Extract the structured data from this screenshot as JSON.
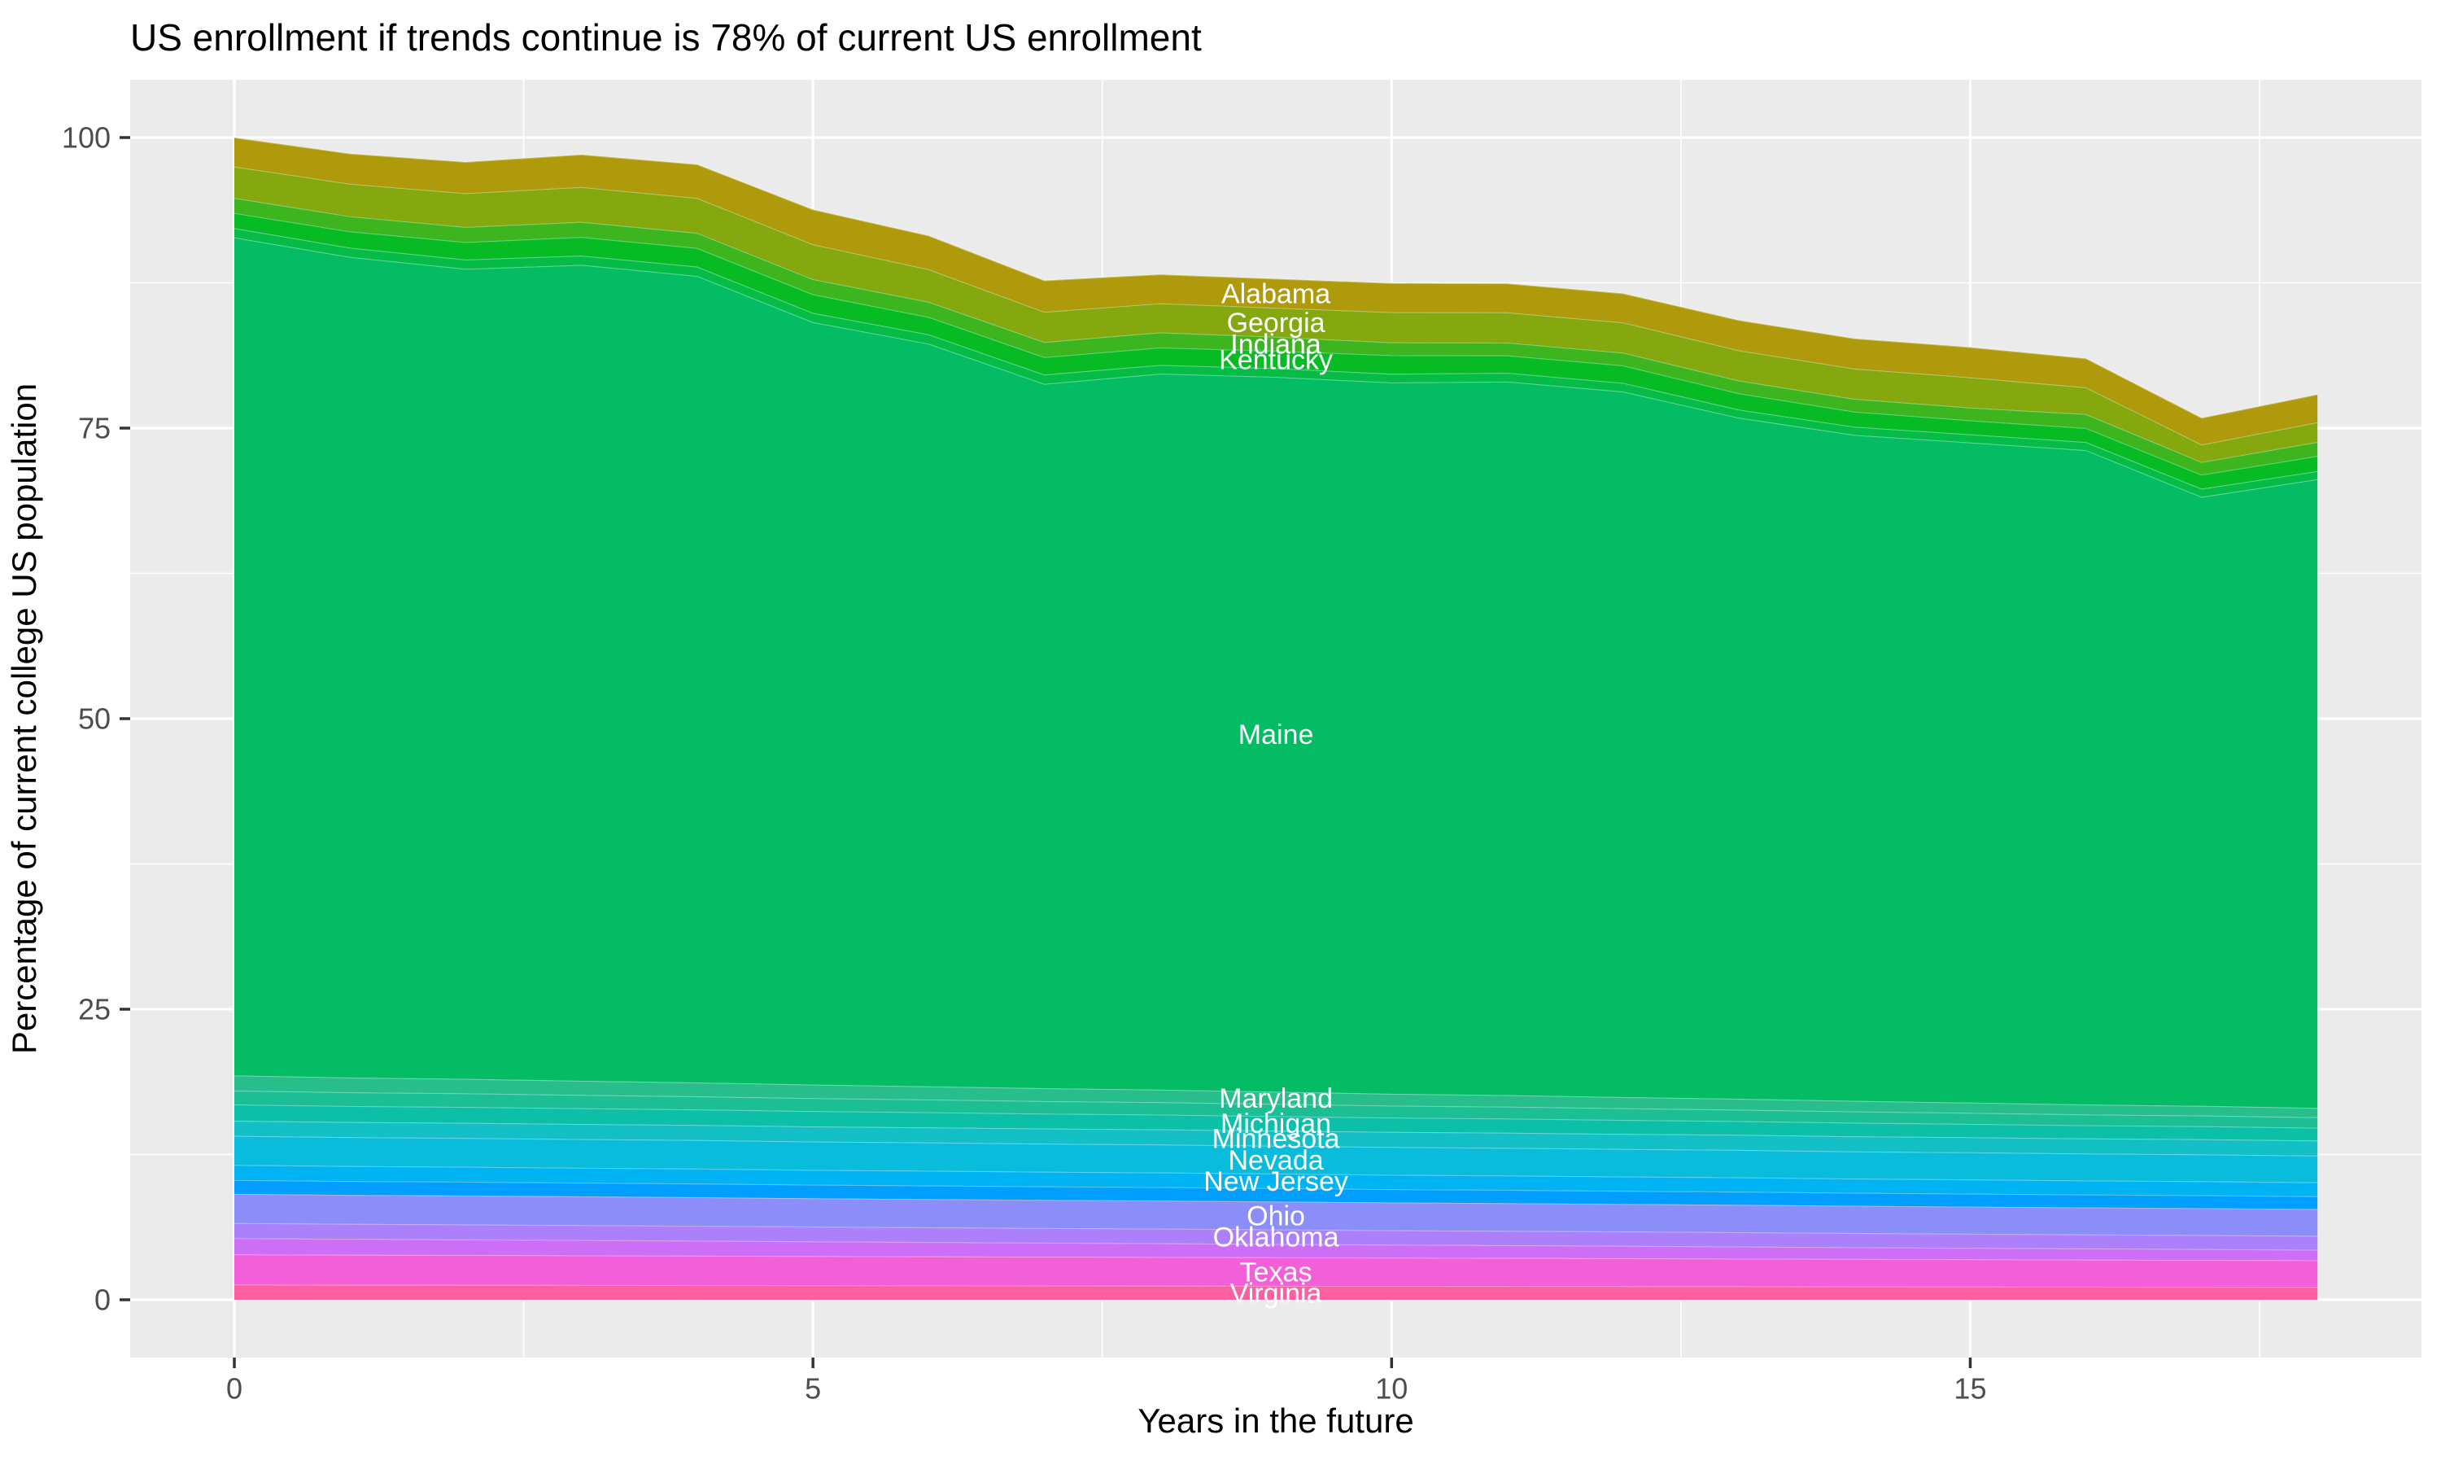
{
  "title": "US enrollment if trends continue is 78% of current US enrollment",
  "x_axis": {
    "label": "Years in the future",
    "ticks": [
      0,
      5,
      10,
      15
    ],
    "minor_ticks": [
      2.5,
      7.5,
      12.5,
      17.5
    ],
    "range": [
      0,
      18
    ]
  },
  "y_axis": {
    "label": "Percentage of current college US population",
    "ticks": [
      0,
      25,
      50,
      75,
      100
    ],
    "minor_ticks": [
      12.5,
      37.5,
      62.5,
      87.5
    ],
    "range": [
      0,
      100
    ]
  },
  "colors": {
    "panel_bg": "#EBEBEB",
    "gridline": "#FFFFFF",
    "tick_mark": "#333333",
    "tick_text": "#4D4D4D",
    "axis_text": "#000000",
    "band_label_text": "#FFFFFF",
    "band_edge_highlight": "rgba(255,255,255,0.35)"
  },
  "chart_data": {
    "type": "area",
    "stacked": true,
    "title": "US enrollment if trends continue is 78% of current US enrollment",
    "xlabel": "Years in the future",
    "ylabel": "Percentage of current college US population",
    "xlim": [
      0,
      18
    ],
    "ylim": [
      0,
      100
    ],
    "grid": "on",
    "legend_position": "none",
    "label_x": 9,
    "x": [
      0,
      1,
      2,
      3,
      4,
      5,
      6,
      7,
      8,
      9,
      10,
      11,
      12,
      13,
      14,
      15,
      16,
      17,
      18
    ],
    "final_total_percent": 78,
    "series": [
      {
        "name": "virginia",
        "label": "Virginia",
        "color": "#FD5FA2",
        "values": [
          1.3,
          1.29,
          1.28,
          1.27,
          1.26,
          1.24,
          1.23,
          1.22,
          1.21,
          1.2,
          1.19,
          1.18,
          1.17,
          1.16,
          1.14,
          1.13,
          1.12,
          1.11,
          1.1
        ]
      },
      {
        "name": "texas",
        "label": "Texas",
        "color": "#F25FD9",
        "values": [
          2.6,
          2.58,
          2.57,
          2.55,
          2.53,
          2.52,
          2.5,
          2.48,
          2.47,
          2.45,
          2.43,
          2.42,
          2.4,
          2.38,
          2.37,
          2.35,
          2.33,
          2.32,
          2.3
        ]
      },
      {
        "name": "unlabeled-1",
        "label": "",
        "color": "#CD6FF6",
        "values": [
          1.4,
          1.37,
          1.34,
          1.32,
          1.29,
          1.26,
          1.23,
          1.21,
          1.18,
          1.15,
          1.12,
          1.09,
          1.07,
          1.04,
          1.01,
          0.98,
          0.96,
          0.93,
          0.9
        ]
      },
      {
        "name": "oklahoma",
        "label": "Oklahoma",
        "color": "#AC80FA",
        "values": [
          1.3,
          1.29,
          1.29,
          1.28,
          1.28,
          1.27,
          1.27,
          1.26,
          1.26,
          1.25,
          1.24,
          1.24,
          1.23,
          1.23,
          1.22,
          1.22,
          1.21,
          1.21,
          1.2
        ]
      },
      {
        "name": "ohio",
        "label": "Ohio",
        "color": "#8B8DF8",
        "values": [
          2.5,
          2.49,
          2.48,
          2.47,
          2.46,
          2.44,
          2.43,
          2.42,
          2.41,
          2.4,
          2.39,
          2.38,
          2.37,
          2.36,
          2.34,
          2.33,
          2.32,
          2.31,
          2.3
        ]
      },
      {
        "name": "unlabeled-2",
        "label": "",
        "color": "#009FFF",
        "values": [
          1.2,
          1.19,
          1.19,
          1.18,
          1.18,
          1.17,
          1.17,
          1.16,
          1.16,
          1.15,
          1.14,
          1.14,
          1.13,
          1.13,
          1.12,
          1.12,
          1.11,
          1.11,
          1.1
        ]
      },
      {
        "name": "new-jersey",
        "label": "New Jersey",
        "color": "#00B3F2",
        "values": [
          1.3,
          1.29,
          1.29,
          1.28,
          1.28,
          1.27,
          1.27,
          1.26,
          1.26,
          1.25,
          1.24,
          1.24,
          1.23,
          1.23,
          1.22,
          1.22,
          1.21,
          1.21,
          1.2
        ]
      },
      {
        "name": "nevada",
        "label": "Nevada",
        "color": "#0ABCDC",
        "values": [
          2.5,
          2.49,
          2.48,
          2.47,
          2.46,
          2.44,
          2.43,
          2.42,
          2.41,
          2.4,
          2.39,
          2.38,
          2.37,
          2.36,
          2.34,
          2.33,
          2.32,
          2.31,
          2.3
        ]
      },
      {
        "name": "minnesota",
        "label": "Minnesota",
        "color": "#12BFC4",
        "values": [
          1.3,
          1.3,
          1.3,
          1.3,
          1.3,
          1.3,
          1.3,
          1.3,
          1.3,
          1.3,
          1.3,
          1.3,
          1.3,
          1.3,
          1.3,
          1.3,
          1.3,
          1.3,
          1.3
        ]
      },
      {
        "name": "michigan",
        "label": "Michigan",
        "color": "#0CBFA7",
        "values": [
          1.4,
          1.38,
          1.37,
          1.35,
          1.33,
          1.32,
          1.3,
          1.28,
          1.27,
          1.25,
          1.23,
          1.22,
          1.2,
          1.18,
          1.17,
          1.15,
          1.13,
          1.12,
          1.1
        ]
      },
      {
        "name": "unlabeled-3",
        "label": "",
        "color": "#1CBE93",
        "values": [
          1.2,
          1.18,
          1.17,
          1.15,
          1.13,
          1.12,
          1.1,
          1.08,
          1.07,
          1.05,
          1.03,
          1.02,
          1.0,
          0.98,
          0.97,
          0.95,
          0.93,
          0.92,
          0.9
        ]
      },
      {
        "name": "maryland",
        "label": "Maryland",
        "color": "#27BE8B",
        "values": [
          1.3,
          1.27,
          1.24,
          1.22,
          1.19,
          1.16,
          1.13,
          1.11,
          1.08,
          1.05,
          1.02,
          0.99,
          0.97,
          0.94,
          0.91,
          0.88,
          0.86,
          0.83,
          0.8
        ]
      },
      {
        "name": "maine",
        "label": "Maine",
        "color": "#04BC64",
        "values": [
          72.1,
          70.6,
          69.7,
          70.2,
          69.4,
          65.6,
          63.9,
          60.6,
          61.6,
          61.5,
          61.2,
          61.4,
          60.7,
          58.6,
          57.3,
          56.8,
          56.3,
          52.4,
          54.1
        ]
      },
      {
        "name": "unlabeled-4",
        "label": "",
        "color": "#04BC46",
        "values": [
          0.8,
          0.8,
          0.8,
          0.8,
          0.8,
          0.8,
          0.8,
          0.8,
          0.75,
          0.75,
          0.75,
          0.75,
          0.75,
          0.7,
          0.7,
          0.7,
          0.7,
          0.7,
          0.7
        ]
      },
      {
        "name": "kentucky",
        "label": "Kentucky",
        "color": "#06BB24",
        "values": [
          1.3,
          1.4,
          1.5,
          1.6,
          1.6,
          1.6,
          1.5,
          1.5,
          1.5,
          1.5,
          1.6,
          1.5,
          1.5,
          1.4,
          1.3,
          1.2,
          1.2,
          1.2,
          1.3
        ]
      },
      {
        "name": "indiana",
        "label": "Indiana",
        "color": "#3CB51F",
        "values": [
          1.3,
          1.3,
          1.3,
          1.3,
          1.3,
          1.3,
          1.3,
          1.3,
          1.3,
          1.2,
          1.1,
          1.1,
          1.1,
          1.1,
          1.1,
          1.1,
          1.2,
          1.1,
          1.2
        ]
      },
      {
        "name": "georgia",
        "label": "Georgia",
        "color": "#84A80D",
        "values": [
          2.7,
          2.8,
          2.9,
          3.0,
          3.0,
          3.0,
          2.8,
          2.6,
          2.5,
          2.5,
          2.6,
          2.6,
          2.6,
          2.6,
          2.6,
          2.6,
          2.3,
          1.5,
          1.7
        ]
      },
      {
        "name": "alabama",
        "label": "Alabama",
        "color": "#AE9A0B",
        "values": [
          2.5,
          2.6,
          2.7,
          2.8,
          2.9,
          3.0,
          2.9,
          2.7,
          2.5,
          2.5,
          2.5,
          2.5,
          2.5,
          2.6,
          2.6,
          2.6,
          2.5,
          2.3,
          2.4
        ]
      }
    ]
  }
}
